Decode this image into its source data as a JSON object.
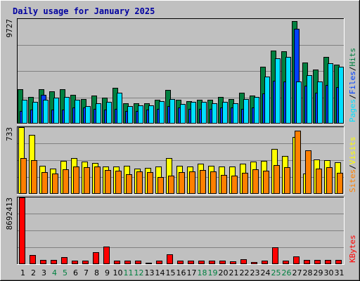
{
  "chart_data": {
    "type": "bar",
    "title": "Daily usage for January 2025",
    "categories": [
      "1",
      "2",
      "3",
      "4",
      "5",
      "6",
      "7",
      "8",
      "9",
      "10",
      "11",
      "12",
      "13",
      "14",
      "15",
      "16",
      "17",
      "18",
      "19",
      "20",
      "21",
      "22",
      "23",
      "24",
      "25",
      "26",
      "27",
      "28",
      "29",
      "30",
      "31"
    ],
    "weekend_days": [
      "4",
      "5",
      "11",
      "12",
      "18",
      "19",
      "25",
      "26"
    ],
    "grid": true,
    "panels": [
      {
        "id": "top",
        "ylim": [
          0,
          9727
        ],
        "y_max_label": "9727",
        "right_label_parts": [
          "Pages",
          "/",
          "Files",
          "/",
          "Hits"
        ],
        "series": [
          {
            "name": "Hits",
            "color": "#008040",
            "values": [
              3200,
              2500,
              3200,
              3000,
              3200,
              2700,
              2300,
              2600,
              2400,
              3300,
              1900,
              1900,
              1900,
              2200,
              3150,
              2200,
              2100,
              2200,
              2200,
              2500,
              2300,
              2900,
              2600,
              5300,
              6800,
              6700,
              9500,
              5700,
              5000,
              6200,
              5500
            ]
          },
          {
            "name": "Files",
            "color": "#0040ff",
            "values": [
              1200,
              1300,
              2700,
              1300,
              1300,
              1500,
              1500,
              1400,
              1300,
              1400,
              1200,
              1200,
              1300,
              1400,
              1600,
              1500,
              1400,
              1400,
              1400,
              1500,
              1500,
              1400,
              1500,
              2800,
              4000,
              3900,
              8800,
              3500,
              2900,
              3600,
              3400
            ]
          },
          {
            "name": "Pages",
            "color": "#00e0ff",
            "values": [
              2200,
              2000,
              2200,
              2400,
              2500,
              2200,
              1600,
              1900,
              2000,
              2900,
              1600,
              1700,
              1700,
              2100,
              2300,
              1800,
              2000,
              2000,
              1900,
              2000,
              1900,
              2300,
              2500,
              4400,
              6100,
              6200,
              3900,
              4500,
              3900,
              5600,
              5300
            ]
          }
        ]
      },
      {
        "id": "middle",
        "ylim": [
          0,
          733
        ],
        "y_max_label": "733",
        "right_label_parts": [
          "Sites",
          "/",
          "Visits"
        ],
        "series": [
          {
            "name": "Visits",
            "color": "#ffff00",
            "values": [
              733,
              650,
              305,
              280,
              360,
              395,
              355,
              340,
              300,
              300,
              305,
              275,
              285,
              300,
              390,
              305,
              300,
              330,
              305,
              300,
              300,
              335,
              355,
              360,
              490,
              420,
              625,
              225,
              380,
              370,
              345
            ]
          },
          {
            "name": "Sites",
            "color": "#ff8000",
            "values": [
              390,
              370,
              240,
              225,
              270,
              300,
              295,
              300,
              265,
              255,
              215,
              245,
              240,
              185,
              200,
              240,
              245,
              260,
              250,
              210,
              200,
              230,
              270,
              255,
              320,
              290,
              695,
              475,
              280,
              290,
              235
            ]
          }
        ]
      },
      {
        "id": "bottom",
        "ylim": [
          0,
          8692413
        ],
        "y_max_label": "8692413",
        "right_label_parts": [
          "KBytes"
        ],
        "series": [
          {
            "name": "KBytes",
            "color": "#ff0000",
            "values": [
              8692413,
              1200000,
              550000,
              550000,
              950000,
              420000,
              420000,
              1600000,
              2300000,
              450000,
              450000,
              420000,
              200000,
              420000,
              1300000,
              450000,
              420000,
              420000,
              420000,
              420000,
              400000,
              600000,
              320000,
              420000,
              2200000,
              420000,
              1000000,
              550000,
              550000,
              550000,
              550000
            ]
          }
        ]
      }
    ]
  }
}
